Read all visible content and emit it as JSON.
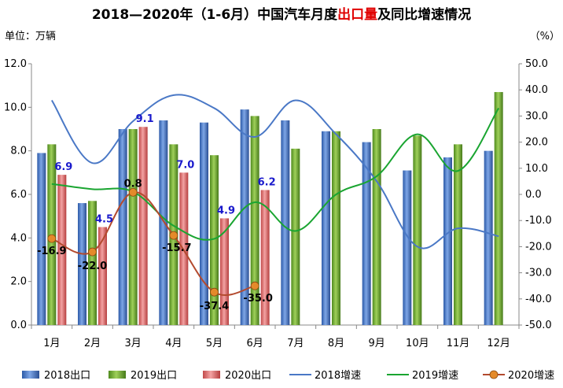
{
  "title": {
    "prefix": "2018—2020年（1-6月）中国汽车月度",
    "highlight": "出口量",
    "suffix": "及同比增速情况"
  },
  "unit_left": "单位：万辆",
  "unit_right": "（%）",
  "colors": {
    "bar2018": "#3f6fc4",
    "bar2019": "#6aa531",
    "bar2020": "#e06666",
    "line2018": "#4a78c6",
    "line2019": "#1aa531",
    "line2020": "#b34a2e",
    "marker2020": "#e48a2a",
    "label2020": "#1a1acc"
  },
  "chart_data": {
    "type": "bar",
    "categories": [
      "1月",
      "2月",
      "3月",
      "4月",
      "5月",
      "6月",
      "7月",
      "8月",
      "9月",
      "10月",
      "11月",
      "12月"
    ],
    "y_left": {
      "ylim": [
        0,
        12
      ],
      "ticks": [
        "0.0",
        "2.0",
        "4.0",
        "6.0",
        "8.0",
        "10.0",
        "12.0"
      ]
    },
    "y_right": {
      "ylim": [
        -50,
        50
      ],
      "ticks": [
        "-50.0",
        "-40.0",
        "-30.0",
        "-20.0",
        "-10.0",
        "0.0",
        "10.0",
        "20.0",
        "30.0",
        "40.0",
        "50.0"
      ]
    },
    "series": [
      {
        "name": "2018出口",
        "kind": "bar",
        "axis": "left",
        "values": [
          7.9,
          5.6,
          9.0,
          9.4,
          9.3,
          9.9,
          9.4,
          8.9,
          8.4,
          7.1,
          7.7,
          8.0
        ]
      },
      {
        "name": "2019出口",
        "kind": "bar",
        "axis": "left",
        "values": [
          8.3,
          5.7,
          9.0,
          8.3,
          7.8,
          9.6,
          8.1,
          8.9,
          9.0,
          8.7,
          8.3,
          10.7
        ]
      },
      {
        "name": "2020出口",
        "kind": "bar",
        "axis": "left",
        "values": [
          6.9,
          4.5,
          9.1,
          7.0,
          4.9,
          6.2,
          null,
          null,
          null,
          null,
          null,
          null
        ],
        "labels": [
          "6.9",
          "4.5",
          "9.1",
          "7.0",
          "4.9",
          "6.2"
        ]
      },
      {
        "name": "2018增速",
        "kind": "line",
        "axis": "right",
        "values": [
          36,
          12,
          28,
          38,
          33,
          22,
          36,
          23,
          5,
          -20,
          -13,
          -16
        ]
      },
      {
        "name": "2019增速",
        "kind": "line",
        "axis": "right",
        "values": [
          4,
          2,
          1,
          -12,
          -17,
          -3,
          -14,
          0,
          7,
          23,
          9,
          33
        ]
      },
      {
        "name": "2020增速",
        "kind": "line",
        "axis": "right",
        "values": [
          -16.9,
          -22.0,
          0.8,
          -15.7,
          -37.4,
          -35.0,
          null,
          null,
          null,
          null,
          null,
          null
        ],
        "labels": [
          "-16.9",
          "-22.0",
          "0.8",
          "-15.7",
          "-37.4",
          "-35.0"
        ]
      }
    ],
    "legend": [
      "2018出口",
      "2019出口",
      "2020出口",
      "2018增速",
      "2019增速",
      "2020增速"
    ],
    "legend_position": "bottom",
    "grid": false
  }
}
